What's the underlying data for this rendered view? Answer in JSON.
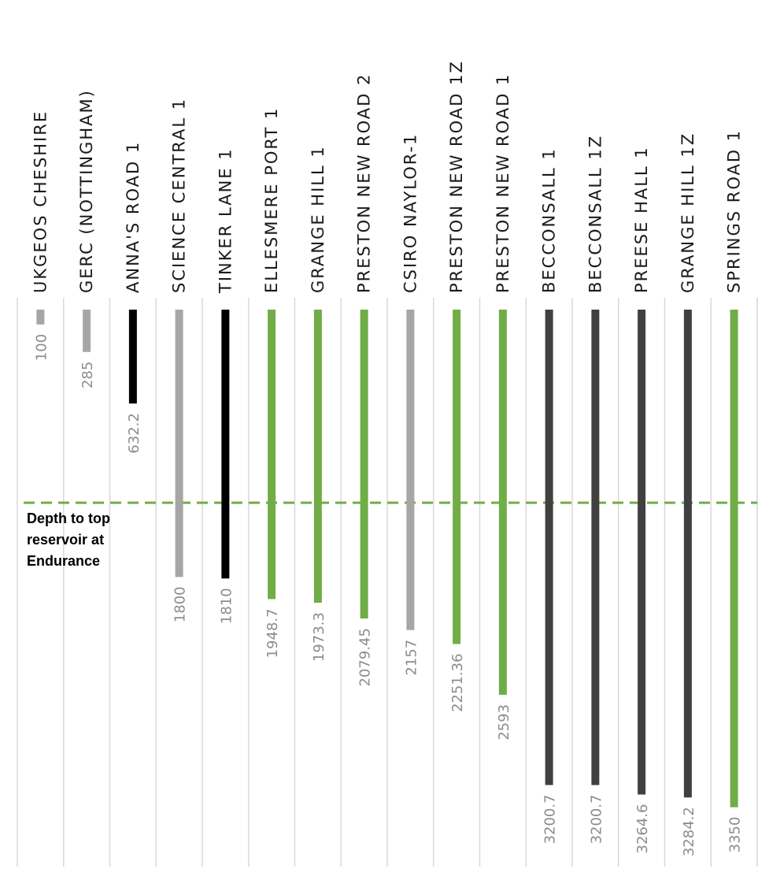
{
  "chart_data": {
    "type": "bar",
    "orientation": "vertical-downward",
    "categories": [
      "UKGEOS CHESHIRE",
      "GERC (NOTTINGHAM)",
      "ANNA'S ROAD 1",
      "SCIENCE CENTRAL 1",
      "TINKER LANE 1",
      "ELLESMERE PORT 1",
      "GRANGE HILL 1",
      "PRESTON NEW ROAD 2",
      "CSIRO NAYLOR-1",
      "PRESTON NEW ROAD 1Z",
      "PRESTON NEW ROAD 1",
      "BECCONSALL 1",
      "BECCONSALL 1Z",
      "PREESE HALL 1",
      "GRANGE HILL 1Z",
      "SPRINGS ROAD 1"
    ],
    "values": [
      100,
      285,
      632.2,
      1800,
      1810,
      1948.7,
      1973.3,
      2079.45,
      2157,
      2251.36,
      2593,
      3200.7,
      3200.7,
      3264.6,
      3284.2,
      3350
    ],
    "value_labels": [
      "100",
      "285",
      "632.2",
      "1800",
      "1810",
      "1948.7",
      "1973.3",
      "2079.45",
      "2157",
      "2251.36",
      "2593",
      "3200.7",
      "3200.7",
      "3264.6",
      "3284.2",
      "3350"
    ],
    "bar_colors": [
      "#a6a6a6",
      "#a6a6a6",
      "#000000",
      "#a6a6a6",
      "#000000",
      "#70ad47",
      "#70ad47",
      "#70ad47",
      "#a6a6a6",
      "#70ad47",
      "#70ad47",
      "#404040",
      "#404040",
      "#404040",
      "#404040",
      "#70ad47"
    ],
    "reference_line": {
      "value": 1300,
      "color": "#70ad47",
      "style": "dashed",
      "label": "Depth to top\nreservoir at\nEndurance"
    },
    "axis_range": [
      0,
      3750
    ],
    "category_labels_rotated": true,
    "title": "",
    "xlabel": "",
    "ylabel": ""
  },
  "colors": {
    "gridline": "#d9d9d9",
    "value_label": "#8c8c8c",
    "category_label": "#1a1a1a"
  }
}
